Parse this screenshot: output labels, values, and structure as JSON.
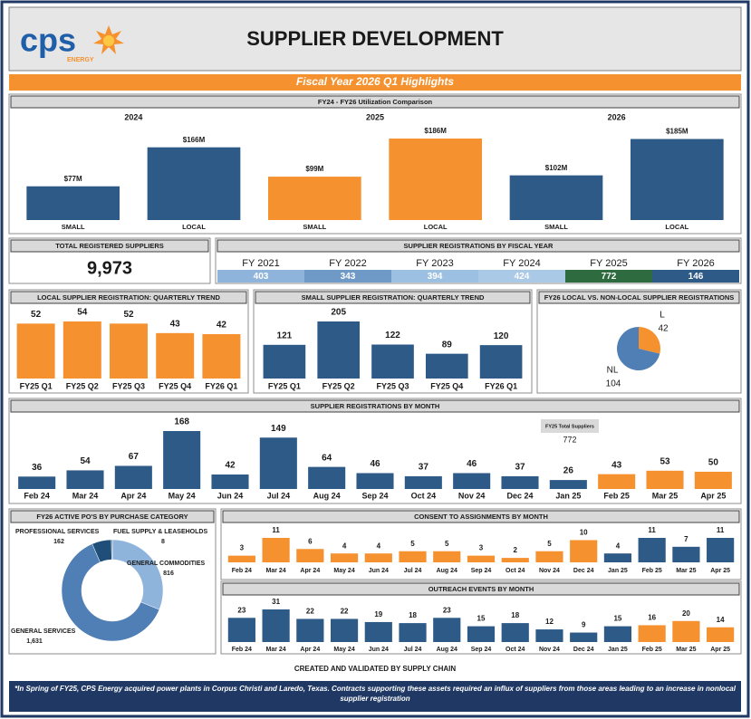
{
  "header": {
    "logo": "cps",
    "logo_sub": "ENERGY",
    "title": "SUPPLIER DEVELOPMENT",
    "subtitle": "Fiscal Year 2026 Q1 Highlights"
  },
  "kpi": {
    "title": "TOTAL REGISTERED SUPPLIERS",
    "value": "9,973"
  },
  "chart_data": [
    {
      "type": "grouped-bar",
      "title": "FY24 - FY26 Utilization Comparison",
      "categories": [
        "SMALL",
        "LOCAL"
      ],
      "series": [
        {
          "name": "2024",
          "color": "#2e5a87",
          "values": [
            77,
            166
          ],
          "value_labels": [
            "$77M",
            "$166M"
          ]
        },
        {
          "name": "2025",
          "color": "#f5922f",
          "values": [
            99,
            186
          ],
          "value_labels": [
            "$99M",
            "$186M"
          ]
        },
        {
          "name": "2026",
          "color": "#2e5a87",
          "values": [
            102,
            185
          ],
          "value_labels": [
            "$102M",
            "$185M"
          ]
        }
      ]
    },
    {
      "type": "table",
      "title": "SUPPLIER REGISTRATIONS BY FISCAL YEAR",
      "categories": [
        "FY 2021",
        "FY 2022",
        "FY 2023",
        "FY 2024",
        "FY 2025",
        "FY 2026"
      ],
      "values": [
        403,
        343,
        394,
        424,
        772,
        146
      ],
      "colors": [
        "#8fb4dc",
        "#6f9ac8",
        "#9cc0e2",
        "#a9c9e6",
        "#2e6b3e",
        "#2e5a87"
      ]
    },
    {
      "type": "bar",
      "title": "LOCAL SUPPLIER REGISTRATION: QUARTERLY TREND",
      "categories": [
        "FY25 Q1",
        "FY25 Q2",
        "FY25 Q3",
        "FY25 Q4",
        "FY26 Q1"
      ],
      "values": [
        52,
        54,
        52,
        43,
        42
      ],
      "color": "#f5922f"
    },
    {
      "type": "bar",
      "title": "SMALL SUPPLIER REGISTRATION: QUARTERLY TREND",
      "categories": [
        "FY25 Q1",
        "FY25 Q2",
        "FY25 Q3",
        "FY25 Q4",
        "FY26 Q1"
      ],
      "values": [
        121,
        205,
        122,
        89,
        120
      ],
      "color": "#2e5a87"
    },
    {
      "type": "pie",
      "title": "FY26 LOCAL VS. NON-LOCAL SUPPLIER REGISTRATIONS",
      "categories": [
        "L",
        "NL"
      ],
      "values": [
        42,
        104
      ],
      "colors": [
        "#f5922f",
        "#4f7fb5"
      ]
    },
    {
      "type": "bar",
      "title": "SUPPLIER REGISTRATIONS BY MONTH",
      "categories": [
        "Feb 24",
        "Mar 24",
        "Apr 24",
        "May 24",
        "Jun 24",
        "Jul 24",
        "Aug 24",
        "Sep 24",
        "Oct 24",
        "Nov 24",
        "Dec 24",
        "Jan 25",
        "Feb 25",
        "Mar 25",
        "Apr 25"
      ],
      "values": [
        36,
        54,
        67,
        168,
        42,
        149,
        64,
        46,
        37,
        46,
        37,
        26,
        43,
        53,
        50
      ],
      "colors": [
        "#2e5a87",
        "#2e5a87",
        "#2e5a87",
        "#2e5a87",
        "#2e5a87",
        "#2e5a87",
        "#2e5a87",
        "#2e5a87",
        "#2e5a87",
        "#2e5a87",
        "#2e5a87",
        "#2e5a87",
        "#f5922f",
        "#f5922f",
        "#f5922f"
      ],
      "annotations": [
        "FY25 Total Suppliers",
        "772"
      ]
    },
    {
      "type": "donut",
      "title": "FY26 ACTIVE PO'S BY PURCHASE CATEGORY",
      "categories": [
        "GENERAL COMMODITIES",
        "GENERAL SERVICES",
        "PROFESSIONAL SERVICES",
        "FUEL SUPPLY & LEASEHOLDS"
      ],
      "values": [
        816,
        1631,
        162,
        8
      ],
      "value_labels": [
        "816",
        "1,631",
        "162",
        "8"
      ],
      "colors": [
        "#8fb4dc",
        "#4f7fb5",
        "#1f4e79",
        "#2e5a87"
      ]
    },
    {
      "type": "bar",
      "title": "CONSENT TO ASSIGNMENTS BY MONTH",
      "categories": [
        "Feb 24",
        "Mar 24",
        "Apr 24",
        "May 24",
        "Jun 24",
        "Jul 24",
        "Aug 24",
        "Sep 24",
        "Oct 24",
        "Nov 24",
        "Dec 24",
        "Jan 25",
        "Feb 25",
        "Mar 25",
        "Apr 25"
      ],
      "values": [
        3,
        11,
        6,
        4,
        4,
        5,
        5,
        3,
        2,
        5,
        10,
        4,
        11,
        7,
        11
      ],
      "colors": [
        "#f5922f",
        "#f5922f",
        "#f5922f",
        "#f5922f",
        "#f5922f",
        "#f5922f",
        "#f5922f",
        "#f5922f",
        "#f5922f",
        "#f5922f",
        "#f5922f",
        "#2e5a87",
        "#2e5a87",
        "#2e5a87",
        "#2e5a87"
      ]
    },
    {
      "type": "bar",
      "title": "OUTREACH EVENTS BY MONTH",
      "categories": [
        "Feb 24",
        "Mar 24",
        "Apr 24",
        "May 24",
        "Jun 24",
        "Jul 24",
        "Aug 24",
        "Sep 24",
        "Oct 24",
        "Nov 24",
        "Dec 24",
        "Jan 25",
        "Feb 25",
        "Mar 25",
        "Apr 25"
      ],
      "values": [
        23,
        31,
        22,
        22,
        19,
        18,
        23,
        15,
        18,
        12,
        9,
        15,
        16,
        20,
        14
      ],
      "colors": [
        "#2e5a87",
        "#2e5a87",
        "#2e5a87",
        "#2e5a87",
        "#2e5a87",
        "#2e5a87",
        "#2e5a87",
        "#2e5a87",
        "#2e5a87",
        "#2e5a87",
        "#2e5a87",
        "#2e5a87",
        "#f5922f",
        "#f5922f",
        "#f5922f"
      ]
    }
  ],
  "footer": {
    "credit": "CREATED AND VALIDATED BY SUPPLY CHAIN",
    "note": "*In Spring of FY25, CPS Energy acquired power plants in Corpus Christi and Laredo, Texas. Contracts supporting these assets required an influx of suppliers from those areas leading to an increase in nonlocal supplier registration"
  }
}
